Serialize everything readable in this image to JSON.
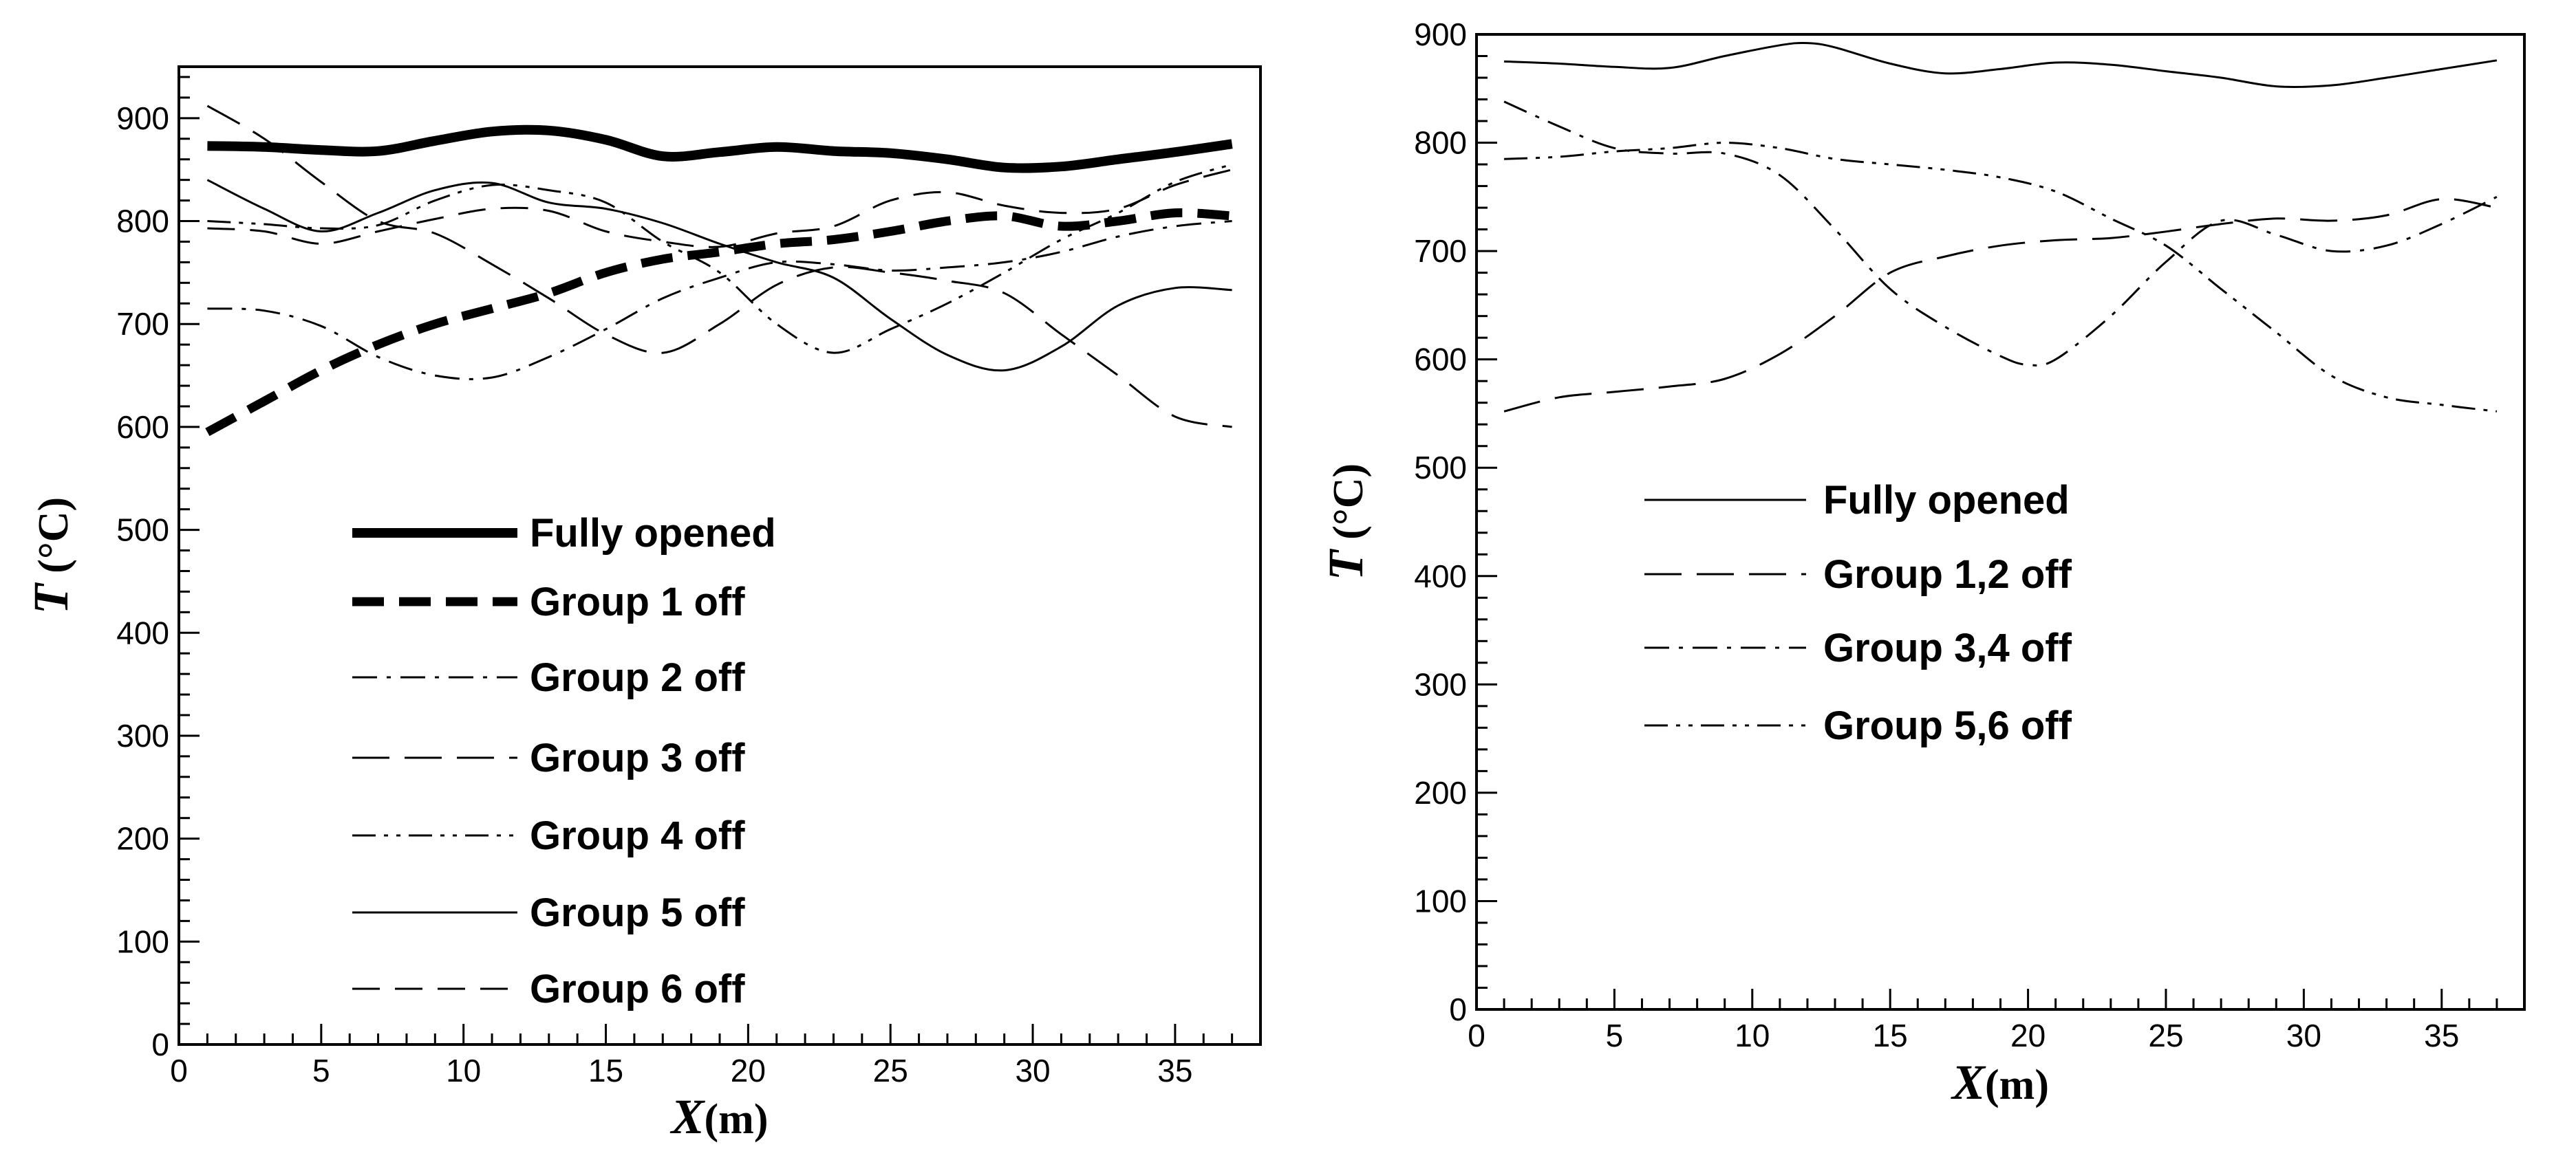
{
  "chart_data": [
    {
      "type": "line",
      "title": "",
      "xlabel": "X(m)",
      "ylabel": "T (°C)",
      "xlabel_main": "X",
      "xlabel_unit": "(m)",
      "ylabel_main": "T",
      "ylabel_unit": " (°C)",
      "xlim": [
        0,
        38
      ],
      "ylim": [
        0,
        950
      ],
      "xticks": [
        0,
        5,
        10,
        15,
        20,
        25,
        30,
        35
      ],
      "yticks": [
        0,
        100,
        200,
        300,
        400,
        500,
        600,
        700,
        800,
        900
      ],
      "legend_position": "center-left",
      "series": [
        {
          "name": "Fully opened",
          "style": "thick-solid",
          "x": [
            1,
            3,
            5,
            7,
            9,
            11,
            13,
            15,
            17,
            19,
            21,
            23,
            25,
            27,
            29,
            31,
            33,
            35,
            37
          ],
          "y": [
            873,
            872,
            869,
            868,
            878,
            887,
            888,
            879,
            863,
            867,
            872,
            868,
            866,
            860,
            852,
            853,
            860,
            867,
            875
          ]
        },
        {
          "name": "Group 1 off",
          "style": "thick-dash",
          "x": [
            1,
            3,
            5,
            7,
            9,
            11,
            13,
            15,
            17,
            19,
            21,
            23,
            25,
            27,
            29,
            31,
            33,
            35,
            37
          ],
          "y": [
            595,
            625,
            655,
            680,
            700,
            715,
            730,
            750,
            763,
            770,
            778,
            782,
            790,
            800,
            805,
            795,
            800,
            808,
            805
          ]
        },
        {
          "name": "Group 2 off",
          "style": "dash-dot",
          "x": [
            1,
            3,
            5,
            7,
            9,
            11,
            13,
            15,
            17,
            19,
            21,
            23,
            25,
            27,
            29,
            31,
            33,
            35,
            37
          ],
          "y": [
            715,
            713,
            698,
            668,
            650,
            648,
            668,
            695,
            725,
            745,
            760,
            758,
            752,
            755,
            760,
            770,
            785,
            795,
            800
          ]
        },
        {
          "name": "Group 3 off",
          "style": "long-dash",
          "x": [
            1,
            3,
            5,
            7,
            9,
            11,
            13,
            15,
            17,
            19,
            21,
            23,
            25,
            27,
            29,
            31,
            33,
            35,
            37
          ],
          "y": [
            912,
            880,
            838,
            800,
            788,
            758,
            725,
            690,
            672,
            700,
            738,
            755,
            750,
            742,
            730,
            690,
            650,
            610,
            600
          ]
        },
        {
          "name": "Group 4 off",
          "style": "dash-dot-dot",
          "x": [
            1,
            3,
            5,
            7,
            9,
            11,
            13,
            15,
            17,
            19,
            21,
            23,
            25,
            27,
            29,
            31,
            33,
            35,
            37
          ],
          "y": [
            800,
            797,
            793,
            796,
            820,
            835,
            830,
            818,
            780,
            750,
            700,
            672,
            695,
            720,
            750,
            782,
            808,
            838,
            855
          ]
        },
        {
          "name": "Group 5 off",
          "style": "thin-solid",
          "x": [
            1,
            3,
            5,
            7,
            9,
            11,
            13,
            15,
            17,
            19,
            21,
            23,
            25,
            27,
            29,
            31,
            33,
            35,
            37
          ],
          "y": [
            840,
            812,
            790,
            808,
            830,
            837,
            818,
            812,
            798,
            778,
            760,
            745,
            705,
            670,
            655,
            678,
            718,
            735,
            733
          ]
        },
        {
          "name": "Group 6 off",
          "style": "medium-dash",
          "x": [
            1,
            3,
            5,
            7,
            9,
            11,
            13,
            15,
            17,
            19,
            21,
            23,
            25,
            27,
            29,
            31,
            33,
            35,
            37
          ],
          "y": [
            793,
            790,
            778,
            790,
            802,
            812,
            810,
            790,
            780,
            775,
            788,
            795,
            820,
            828,
            815,
            808,
            812,
            835,
            850
          ]
        }
      ]
    },
    {
      "type": "line",
      "title": "",
      "xlabel": "X(m)",
      "ylabel": "T (°C)",
      "xlabel_main": "X",
      "xlabel_unit": "(m)",
      "ylabel_main": "T",
      "ylabel_unit": " (°C)",
      "xlim": [
        0,
        38
      ],
      "ylim": [
        0,
        900
      ],
      "xticks": [
        0,
        5,
        10,
        15,
        20,
        25,
        30,
        35
      ],
      "yticks": [
        0,
        100,
        200,
        300,
        400,
        500,
        600,
        700,
        800,
        900
      ],
      "legend_position": "center-left",
      "series": [
        {
          "name": "Fully opened",
          "style": "thin-solid",
          "x": [
            1,
            3,
            5,
            7,
            9,
            11,
            12,
            13,
            15,
            17,
            19,
            21,
            23,
            25,
            27,
            29,
            31,
            33,
            35,
            37
          ],
          "y": [
            875,
            873,
            870,
            869,
            880,
            890,
            892,
            888,
            873,
            864,
            868,
            874,
            872,
            866,
            860,
            852,
            853,
            860,
            868,
            876
          ]
        },
        {
          "name": "Group 1,2 off",
          "style": "long-dash",
          "x": [
            1,
            3,
            5,
            7,
            9,
            11,
            13,
            15,
            17,
            19,
            21,
            23,
            25,
            27,
            29,
            31,
            33,
            35,
            37
          ],
          "y": [
            552,
            565,
            570,
            575,
            582,
            605,
            640,
            680,
            695,
            705,
            710,
            712,
            718,
            725,
            730,
            728,
            733,
            748,
            740
          ]
        },
        {
          "name": "Group 3,4 off",
          "style": "dash-dot",
          "x": [
            1,
            3,
            5,
            7,
            9,
            11,
            13,
            15,
            17,
            19,
            20,
            21,
            23,
            25,
            27,
            29,
            31,
            33,
            35,
            37
          ],
          "y": [
            838,
            815,
            795,
            790,
            790,
            770,
            720,
            665,
            630,
            603,
            595,
            600,
            640,
            690,
            728,
            715,
            700,
            705,
            725,
            750
          ]
        },
        {
          "name": "Group 5,6 off",
          "style": "dash-dot-dot",
          "x": [
            1,
            3,
            5,
            7,
            9,
            11,
            13,
            15,
            17,
            19,
            21,
            23,
            25,
            27,
            29,
            31,
            33,
            35,
            37
          ],
          "y": [
            785,
            787,
            792,
            795,
            800,
            795,
            785,
            780,
            775,
            768,
            755,
            730,
            705,
            665,
            625,
            585,
            565,
            558,
            552
          ]
        }
      ]
    }
  ]
}
